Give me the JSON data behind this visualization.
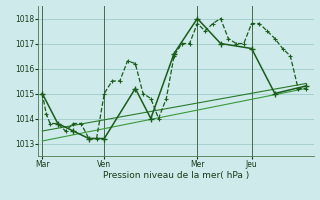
{
  "bg_color": "#ceeaea",
  "grid_color": "#a0cccc",
  "line_color_dark": "#1a5c1a",
  "line_color_mid": "#2a7a2a",
  "line_color_light": "#3a9a3a",
  "title": "Pression niveau de la mer( hPa )",
  "ylabel_ticks": [
    1013,
    1014,
    1015,
    1016,
    1017,
    1018
  ],
  "x_tick_labels": [
    "Mar",
    "Ven",
    "Mer",
    "Jeu"
  ],
  "x_tick_positions": [
    0,
    16,
    40,
    54
  ],
  "xlim": [
    -1,
    70
  ],
  "ylim": [
    1012.5,
    1018.5
  ],
  "series1_x": [
    0,
    1,
    2,
    4,
    6,
    8,
    10,
    12,
    14,
    16,
    18,
    20,
    22,
    24,
    26,
    28,
    30,
    32,
    34,
    36,
    38,
    40,
    42,
    44,
    46,
    48,
    50,
    52,
    54,
    56,
    58,
    60,
    62,
    64,
    66,
    68
  ],
  "series1_y": [
    1015.0,
    1014.2,
    1013.8,
    1013.8,
    1013.5,
    1013.8,
    1013.8,
    1013.2,
    1013.2,
    1015.0,
    1015.5,
    1015.5,
    1016.3,
    1016.2,
    1015.0,
    1014.8,
    1014.0,
    1014.8,
    1016.5,
    1017.0,
    1017.0,
    1017.8,
    1017.5,
    1017.8,
    1018.0,
    1017.2,
    1017.0,
    1017.0,
    1017.8,
    1017.8,
    1017.5,
    1017.2,
    1016.8,
    1016.5,
    1015.2,
    1015.2
  ],
  "series2_x": [
    0,
    4,
    8,
    12,
    16,
    24,
    28,
    34,
    40,
    46,
    54,
    60,
    68
  ],
  "series2_y": [
    1015.0,
    1013.8,
    1013.5,
    1013.2,
    1013.2,
    1015.2,
    1014.0,
    1016.6,
    1018.0,
    1017.0,
    1016.8,
    1015.0,
    1015.3
  ],
  "trend1_x": [
    0,
    68
  ],
  "trend1_y": [
    1013.5,
    1015.4
  ],
  "trend2_x": [
    0,
    68
  ],
  "trend2_y": [
    1013.1,
    1015.2
  ],
  "vline_positions": [
    0,
    16,
    40,
    54
  ]
}
